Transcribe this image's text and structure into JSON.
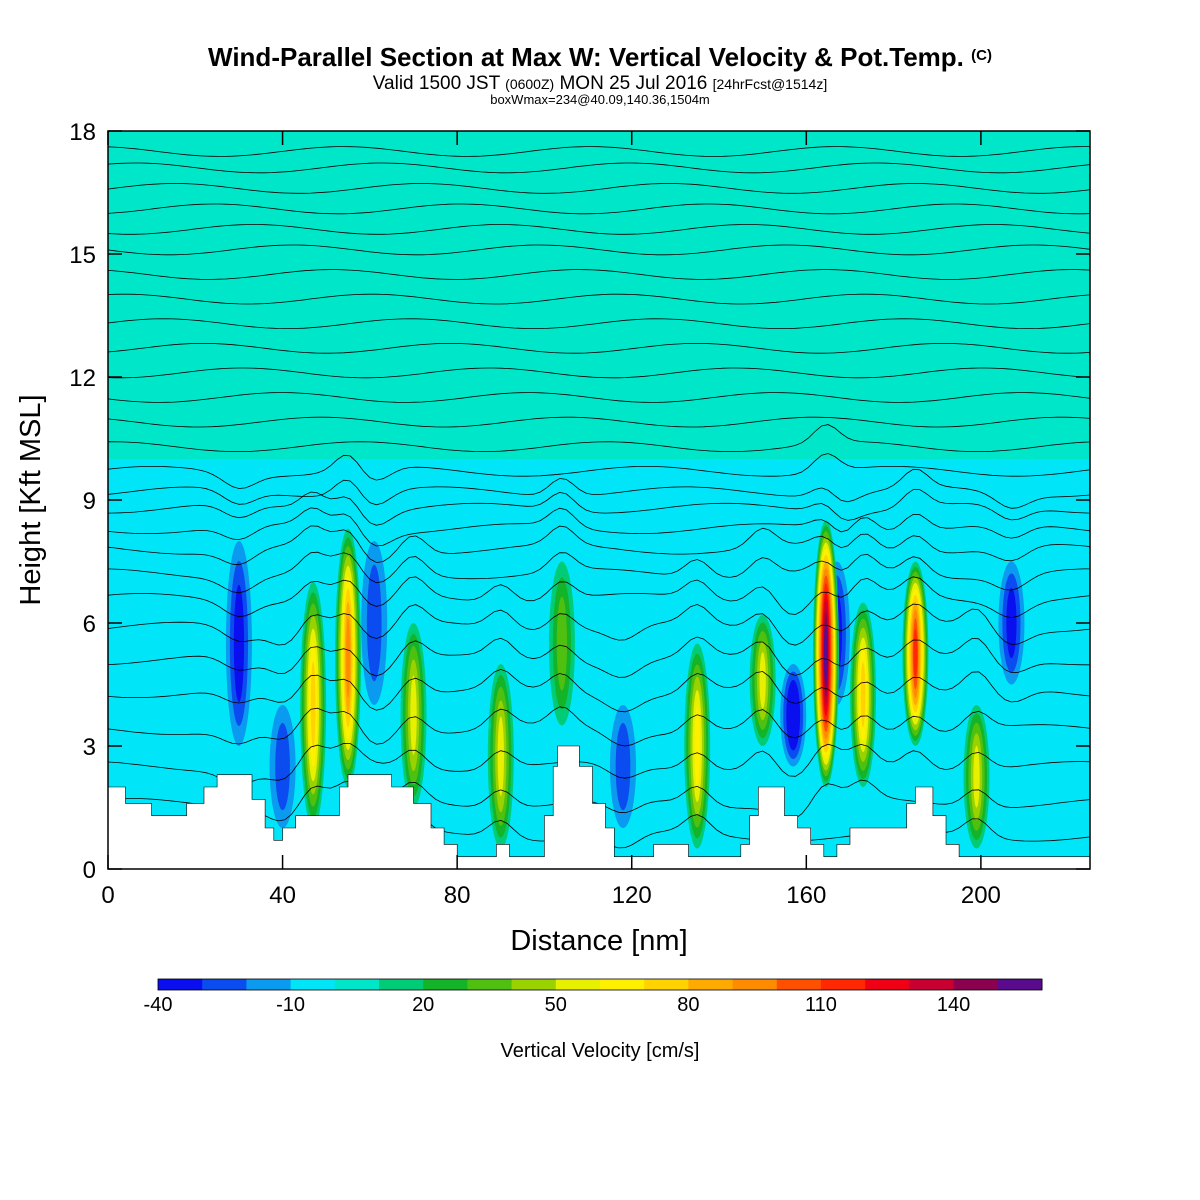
{
  "header": {
    "title_main": "Wind-Parallel Section at Max W: Vertical Velocity & Pot.Temp.",
    "title_mark": "(C)",
    "subtitle_a": "Valid 1500 JST",
    "subtitle_b": "(0600Z)",
    "subtitle_c": "MON 25 Jul 2016",
    "subtitle_d": "[24hrFcst@1514z]",
    "box_line": "boxWmax=234@40.09,140.36,1504m"
  },
  "chart_data": {
    "type": "heatmap",
    "xlabel": "Distance [nm]",
    "ylabel": "Height [Kft MSL]",
    "xlim": [
      0,
      225
    ],
    "ylim": [
      0,
      18
    ],
    "x_ticks": [
      "0",
      "40",
      "80",
      "120",
      "160",
      "200"
    ],
    "y_ticks": [
      "0",
      "3",
      "6",
      "9",
      "12",
      "15",
      "18"
    ],
    "colorbar": {
      "label": "Vertical Velocity [cm/s]",
      "tick_labels": [
        "-40",
        "-10",
        "20",
        "50",
        "80",
        "110",
        "140"
      ],
      "levels": [
        -40,
        -30,
        -20,
        -10,
        0,
        10,
        20,
        30,
        40,
        50,
        60,
        70,
        80,
        90,
        100,
        110,
        120,
        130,
        140,
        150,
        160
      ],
      "colors": [
        "#0a0ff0",
        "#0a4cf0",
        "#0a9af0",
        "#00e6f8",
        "#00e6c8",
        "#00cc78",
        "#14b428",
        "#50c010",
        "#9ad200",
        "#e6f000",
        "#fff000",
        "#ffd200",
        "#ffaa00",
        "#ff8c00",
        "#ff5000",
        "#ff2800",
        "#f00014",
        "#c80032",
        "#8c0050",
        "#5a0a8c"
      ]
    },
    "background_w": [
      {
        "x_from": 0,
        "x_to": 225,
        "z_from": 0,
        "z_to": 10,
        "w": -5
      },
      {
        "x_from": 0,
        "x_to": 225,
        "z_from": 10,
        "z_to": 18,
        "w": 5
      }
    ],
    "updrafts": [
      {
        "x": 47,
        "z_bottom": 1,
        "z_top": 7,
        "max_w": 70
      },
      {
        "x": 55,
        "z_bottom": 2,
        "z_top": 8.3,
        "max_w": 95
      },
      {
        "x": 70,
        "z_bottom": 1.5,
        "z_top": 6,
        "max_w": 55
      },
      {
        "x": 90,
        "z_bottom": 0.5,
        "z_top": 5,
        "max_w": 50
      },
      {
        "x": 104,
        "z_bottom": 3.5,
        "z_top": 7.5,
        "max_w": 35
      },
      {
        "x": 135,
        "z_bottom": 0.5,
        "z_top": 5.5,
        "max_w": 65
      },
      {
        "x": 150,
        "z_bottom": 3,
        "z_top": 6.2,
        "max_w": 55
      },
      {
        "x": 164.5,
        "z_bottom": 2,
        "z_top": 8.5,
        "max_w": 150
      },
      {
        "x": 173,
        "z_bottom": 2,
        "z_top": 6.5,
        "max_w": 70
      },
      {
        "x": 185,
        "z_bottom": 3,
        "z_top": 7.5,
        "max_w": 110
      },
      {
        "x": 199,
        "z_bottom": 0.5,
        "z_top": 4,
        "max_w": 55
      }
    ],
    "downdrafts": [
      {
        "x": 30,
        "z_bottom": 3,
        "z_top": 8,
        "min_w": -30
      },
      {
        "x": 40,
        "z_bottom": 1,
        "z_top": 4,
        "min_w": -25
      },
      {
        "x": 61,
        "z_bottom": 4,
        "z_top": 8,
        "min_w": -25
      },
      {
        "x": 118,
        "z_bottom": 1,
        "z_top": 4,
        "min_w": -20
      },
      {
        "x": 157,
        "z_bottom": 2.5,
        "z_top": 5,
        "min_w": -40
      },
      {
        "x": 167,
        "z_bottom": 4,
        "z_top": 7.5,
        "min_w": -30
      },
      {
        "x": 207,
        "z_bottom": 4.5,
        "z_top": 7.5,
        "min_w": -35
      }
    ],
    "terrain_kft": [
      {
        "x": 0,
        "z": 2.0
      },
      {
        "x": 3,
        "z": 2.0
      },
      {
        "x": 4,
        "z": 1.6
      },
      {
        "x": 10,
        "z": 1.3
      },
      {
        "x": 18,
        "z": 1.6
      },
      {
        "x": 22,
        "z": 2.0
      },
      {
        "x": 25,
        "z": 2.3
      },
      {
        "x": 29,
        "z": 2.3
      },
      {
        "x": 33,
        "z": 1.7
      },
      {
        "x": 36,
        "z": 1.0
      },
      {
        "x": 38,
        "z": 0.7
      },
      {
        "x": 40,
        "z": 1.0
      },
      {
        "x": 43,
        "z": 1.3
      },
      {
        "x": 50,
        "z": 1.3
      },
      {
        "x": 53,
        "z": 2.0
      },
      {
        "x": 55,
        "z": 2.3
      },
      {
        "x": 60,
        "z": 2.3
      },
      {
        "x": 65,
        "z": 2.0
      },
      {
        "x": 70,
        "z": 1.6
      },
      {
        "x": 74,
        "z": 1.0
      },
      {
        "x": 77,
        "z": 0.6
      },
      {
        "x": 80,
        "z": 0.3
      },
      {
        "x": 86,
        "z": 0.3
      },
      {
        "x": 89,
        "z": 0.6
      },
      {
        "x": 92,
        "z": 0.3
      },
      {
        "x": 98,
        "z": 0.3
      },
      {
        "x": 100,
        "z": 1.3
      },
      {
        "x": 102,
        "z": 2.5
      },
      {
        "x": 103,
        "z": 3.0
      },
      {
        "x": 107,
        "z": 3.0
      },
      {
        "x": 108,
        "z": 2.5
      },
      {
        "x": 111,
        "z": 1.6
      },
      {
        "x": 114,
        "z": 1.0
      },
      {
        "x": 116,
        "z": 0.3
      },
      {
        "x": 122,
        "z": 0.3
      },
      {
        "x": 125,
        "z": 0.6
      },
      {
        "x": 130,
        "z": 0.6
      },
      {
        "x": 133,
        "z": 0.3
      },
      {
        "x": 140,
        "z": 0.3
      },
      {
        "x": 145,
        "z": 0.6
      },
      {
        "x": 147,
        "z": 1.3
      },
      {
        "x": 149,
        "z": 2.0
      },
      {
        "x": 152,
        "z": 2.0
      },
      {
        "x": 155,
        "z": 1.3
      },
      {
        "x": 158,
        "z": 1.0
      },
      {
        "x": 161,
        "z": 0.6
      },
      {
        "x": 164,
        "z": 0.3
      },
      {
        "x": 167,
        "z": 0.6
      },
      {
        "x": 170,
        "z": 1.0
      },
      {
        "x": 180,
        "z": 1.0
      },
      {
        "x": 183,
        "z": 1.6
      },
      {
        "x": 185,
        "z": 2.0
      },
      {
        "x": 187,
        "z": 2.0
      },
      {
        "x": 189,
        "z": 1.3
      },
      {
        "x": 192,
        "z": 0.6
      },
      {
        "x": 195,
        "z": 0.3
      },
      {
        "x": 225,
        "z": 0.3
      }
    ],
    "isentrope_levels_kft": [
      0.8,
      1.6,
      2.5,
      3.4,
      4.3,
      5.1,
      5.9,
      6.6,
      7.2,
      7.8,
      8.3,
      8.8,
      9.2,
      9.7,
      10.3,
      10.9,
      11.5,
      12.1,
      12.7,
      13.3,
      13.9,
      14.5,
      15.1,
      15.6,
      16.1,
      16.6,
      17.1,
      17.5
    ]
  }
}
